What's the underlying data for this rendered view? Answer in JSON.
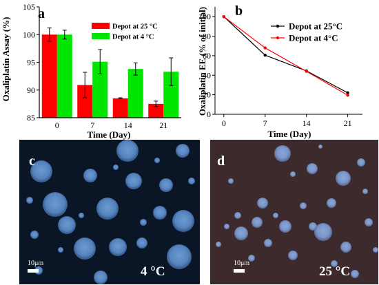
{
  "chart_data": [
    {
      "panel": "a",
      "type": "bar",
      "categories": [
        "0",
        "7",
        "14",
        "21"
      ],
      "xlabel": "Time (Day)",
      "ylabel": "Oxaliplatin Assay (%)",
      "ylim": [
        85,
        105
      ],
      "yticks": [
        85,
        90,
        95,
        100,
        105
      ],
      "legend_placement": "top-right",
      "series": [
        {
          "name": "Depot at 25 °C",
          "color": "#ff0000",
          "values": [
            100.0,
            90.9,
            88.5,
            87.5
          ],
          "errors": [
            1.2,
            2.3,
            0.1,
            0.5
          ]
        },
        {
          "name": "Depot at 4 °C",
          "color": "#00e600",
          "values": [
            100.0,
            95.1,
            93.8,
            93.3
          ],
          "errors": [
            0.8,
            2.2,
            1.1,
            2.5
          ]
        }
      ]
    },
    {
      "panel": "b",
      "type": "line",
      "x": [
        0,
        7,
        14,
        21
      ],
      "xlabel": "Time (Day)",
      "ylabel": "Oxaliplatin EE (% of initial)",
      "xticks": [
        0,
        7,
        14,
        21
      ],
      "xlim": [
        -1.5,
        23.5
      ],
      "ylim": [
        0,
        110
      ],
      "yticks": [
        0,
        20,
        40,
        60,
        80,
        100
      ],
      "legend_placement": "top-right",
      "series": [
        {
          "name": "Depot at 25°C",
          "color": "#000000",
          "values": [
            100,
            60.5,
            44.5,
            22
          ]
        },
        {
          "name": "Depot at 4°C",
          "color": "#ff0000",
          "values": [
            100,
            68,
            44,
            19.5
          ]
        }
      ]
    }
  ],
  "panels": {
    "a": {
      "letter": "a"
    },
    "b": {
      "letter": "b"
    },
    "c": {
      "letter": "c",
      "temperature": "4 °C",
      "scale_bar": "10μm"
    },
    "d": {
      "letter": "d",
      "temperature": "25 °C",
      "scale_bar": "10μm"
    }
  },
  "colors": {
    "bar_25C": "#ff0000",
    "bar_4C": "#00e600",
    "line_25C": "#000000",
    "line_4C": "#ff0000",
    "micro_c_background": "#0a1626",
    "micro_d_background": "#3c2a2c",
    "droplet": "#5a88c0"
  }
}
